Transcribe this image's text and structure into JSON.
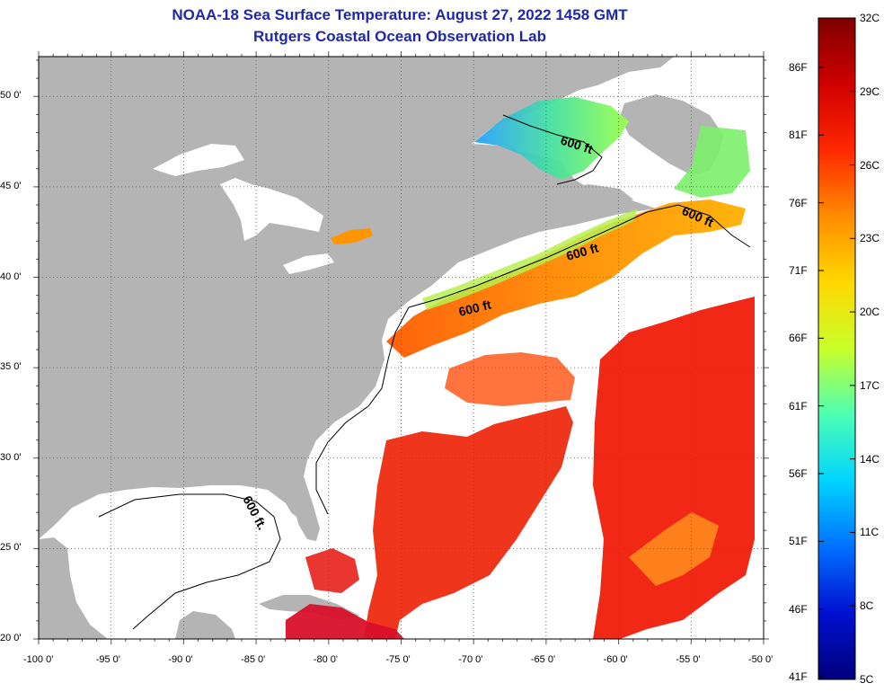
{
  "title": {
    "line1": "NOAA-18 Sea Surface Temperature:  August 27, 2022 1458 GMT",
    "line2": "Rutgers Coastal Ocean Observation Lab"
  },
  "map": {
    "lat_labels": [
      "50 0'",
      "45 0'",
      "40 0'",
      "35 0'",
      "30 0'",
      "25 0'",
      "20 0'"
    ],
    "lon_labels": [
      "-100 0'",
      "-95 0'",
      "-90 0'",
      "-85 0'",
      "-80 0'",
      "-75 0'",
      "-70 0'",
      "-65 0'",
      "-60 0'",
      "-55 0'",
      "-50 0'"
    ],
    "contour_label": "600 ft",
    "contour_label_vertical": "600 ft.",
    "colors": {
      "land": "#b4b4b4",
      "no_data": "#ffffff",
      "grid": "#555555"
    }
  },
  "colorbar": {
    "celsius_labels": [
      "32C",
      "29C",
      "26C",
      "23C",
      "20C",
      "17C",
      "14C",
      "11C",
      "8C",
      "5C"
    ],
    "fahrenheit_labels": [
      "86F",
      "81F",
      "76F",
      "71F",
      "66F",
      "61F",
      "56F",
      "51F",
      "46F",
      "41F"
    ],
    "gradient_colors": [
      "#7f0000",
      "#d00000",
      "#ff2800",
      "#ff8c00",
      "#ffd800",
      "#c8ff2a",
      "#4cffb4",
      "#00d4ff",
      "#0070ff",
      "#0010d0",
      "#00007a"
    ]
  }
}
